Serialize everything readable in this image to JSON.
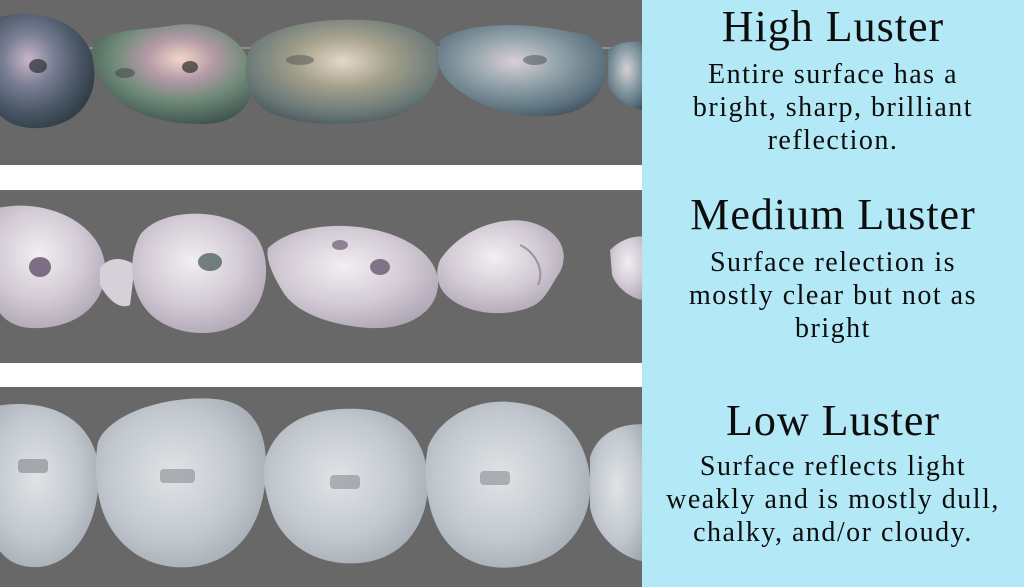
{
  "levels": [
    {
      "title": "High Luster",
      "description_lines": [
        "Entire surface has a",
        "bright, sharp, brilliant",
        "reflection."
      ]
    },
    {
      "title": "Medium Luster",
      "description_lines": [
        "Surface relection is",
        "mostly clear but not as",
        "bright"
      ]
    },
    {
      "title": "Low Luster",
      "description_lines": [
        "Surface reflects light",
        "weakly and is mostly dull,",
        "chalky, and/or cloudy."
      ]
    }
  ],
  "colors": {
    "photo_background": "#686868",
    "panel_background": "#b3e9f7",
    "separator": "#ffffff"
  }
}
